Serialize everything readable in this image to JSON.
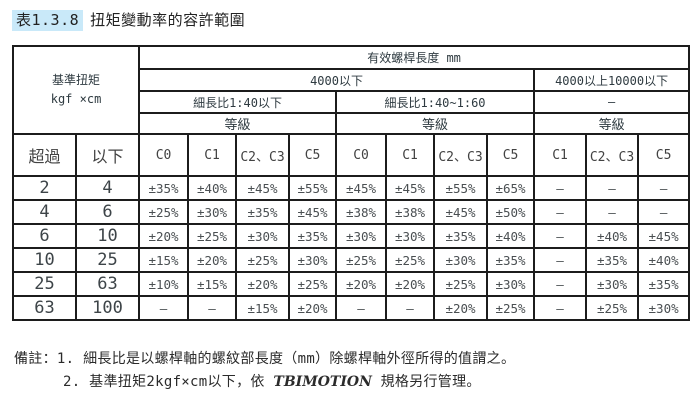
{
  "title": {
    "tag": "表1.3.8",
    "text": "扭矩變動率的容許範圍"
  },
  "colors": {
    "header_blue": "#58c7f0",
    "cell_blue": "#c9e9f9",
    "border": "#1c1c1c"
  },
  "table": {
    "corner_title": "基準扭矩",
    "corner_unit": "kgf ×cm",
    "top_header": "有效螺桿長度 mm",
    "length_groups": [
      "4000以下",
      "4000以上10000以下"
    ],
    "ratio_groups": [
      "細長比1:40以下",
      "細長比1:40~1:60",
      "—"
    ],
    "grade_label": "等級",
    "over_label": "超過",
    "under_label": "以下",
    "grade_cols": [
      "C0",
      "C1",
      "C2、C3",
      "C5",
      "C0",
      "C1",
      "C2、C3",
      "C5",
      "C1",
      "C2、C3",
      "C5"
    ],
    "rows": [
      {
        "over": "2",
        "under": "4",
        "values": [
          "±35%",
          "±40%",
          "±45%",
          "±55%",
          "±45%",
          "±45%",
          "±55%",
          "±65%",
          "—",
          "—",
          "—"
        ]
      },
      {
        "over": "4",
        "under": "6",
        "values": [
          "±25%",
          "±30%",
          "±35%",
          "±45%",
          "±38%",
          "±38%",
          "±45%",
          "±50%",
          "—",
          "—",
          "—"
        ]
      },
      {
        "over": "6",
        "under": "10",
        "values": [
          "±20%",
          "±25%",
          "±30%",
          "±35%",
          "±30%",
          "±30%",
          "±35%",
          "±40%",
          "—",
          "±40%",
          "±45%"
        ]
      },
      {
        "over": "10",
        "under": "25",
        "values": [
          "±15%",
          "±20%",
          "±25%",
          "±30%",
          "±25%",
          "±25%",
          "±30%",
          "±35%",
          "—",
          "±35%",
          "±40%"
        ]
      },
      {
        "over": "25",
        "under": "63",
        "values": [
          "±10%",
          "±15%",
          "±20%",
          "±25%",
          "±20%",
          "±20%",
          "±25%",
          "±30%",
          "—",
          "±30%",
          "±35%"
        ]
      },
      {
        "over": "63",
        "under": "100",
        "values": [
          "—",
          "—",
          "±15%",
          "±20%",
          "—",
          "—",
          "±20%",
          "±25%",
          "—",
          "±25%",
          "±30%"
        ]
      }
    ]
  },
  "notes": {
    "label": "備註：",
    "note1": "1. 細長比是以螺桿軸的螺紋部長度（mm）除螺桿軸外徑所得的值謂之。",
    "note2_prefix": "2. 基準扭矩2kgf×cm以下，依 ",
    "note2_brand": "TBIMOTION",
    "note2_suffix": " 規格另行管理。"
  }
}
